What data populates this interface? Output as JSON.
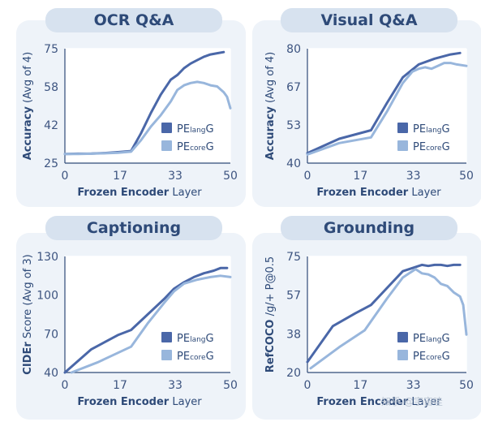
{
  "chart_data": [
    {
      "type": "line",
      "title": "OCR Q&A",
      "ylabel_bold": "Accuracy",
      "ylabel_rest": " (Avg of 4)",
      "xlabel_bold": "Frozen Encoder",
      "xlabel_rest": " Layer",
      "xlim": [
        0,
        50
      ],
      "ylim": [
        25,
        75
      ],
      "xticks": [
        "0",
        "17",
        "33",
        "50"
      ],
      "yticks": [
        "25",
        "42",
        "58",
        "75"
      ],
      "grid": true,
      "legend": "bottom-right",
      "series": [
        {
          "name_main": "PE",
          "name_sub": "lang",
          "name_end": "G",
          "color": "#4a67a8",
          "x": [
            0,
            4,
            8,
            12,
            16,
            20,
            23,
            26,
            29,
            32,
            34,
            36,
            38,
            40,
            42,
            44,
            46,
            48
          ],
          "y": [
            29.0,
            29.1,
            29.2,
            29.4,
            29.8,
            30.3,
            38,
            47,
            55,
            61.5,
            63.5,
            66.5,
            68.5,
            70,
            71.5,
            72.5,
            73,
            73.5
          ]
        },
        {
          "name_main": "PE",
          "name_sub": "core",
          "name_end": "G",
          "color": "#98b6dc",
          "x": [
            0,
            4,
            8,
            12,
            16,
            20,
            23,
            26,
            29,
            32,
            34,
            36,
            38,
            40,
            42,
            44,
            46,
            48,
            49,
            50
          ],
          "y": [
            29.0,
            29.0,
            29.1,
            29.3,
            29.5,
            30.0,
            35,
            41,
            46,
            52,
            57,
            59,
            60,
            60.5,
            60,
            59,
            58.5,
            56,
            54,
            49
          ]
        }
      ]
    },
    {
      "type": "line",
      "title": "Visual Q&A",
      "ylabel_bold": "Accuracy",
      "ylabel_rest": " (Avg of 4)",
      "xlabel_bold": "Frozen Encoder",
      "xlabel_rest": " Layer",
      "xlim": [
        0,
        50
      ],
      "ylim": [
        40,
        80
      ],
      "xticks": [
        "0",
        "17",
        "33",
        "50"
      ],
      "yticks": [
        "40",
        "53",
        "67",
        "80"
      ],
      "grid": true,
      "legend": "bottom-right",
      "series": [
        {
          "name_main": "PE",
          "name_sub": "lang",
          "name_end": "G",
          "color": "#4a67a8",
          "x": [
            0,
            10,
            20,
            25,
            30,
            35,
            40,
            45,
            48
          ],
          "y": [
            43.5,
            48.5,
            51.5,
            61,
            70,
            74.5,
            76.5,
            78,
            78.5
          ]
        },
        {
          "name_main": "PE",
          "name_sub": "core",
          "name_end": "G",
          "color": "#98b6dc",
          "x": [
            0,
            10,
            20,
            25,
            30,
            33,
            35,
            37,
            39,
            41,
            43,
            45,
            47,
            50
          ],
          "y": [
            43,
            47,
            49,
            58,
            68,
            72,
            73,
            73.5,
            73,
            74,
            75,
            75,
            74.5,
            74
          ]
        }
      ]
    },
    {
      "type": "line",
      "title": "Captioning",
      "ylabel_bold": "CIDEr",
      "ylabel_rest": " Score (Avg of 3)",
      "xlabel_bold": "Frozen Encoder",
      "xlabel_rest": " Layer",
      "xlim": [
        0,
        50
      ],
      "ylim": [
        40,
        130
      ],
      "xticks": [
        "0",
        "17",
        "33",
        "50"
      ],
      "yticks": [
        "40",
        "70",
        "100",
        "130"
      ],
      "grid": true,
      "legend": "bottom-right",
      "series": [
        {
          "name_main": "PE",
          "name_sub": "lang",
          "name_end": "G",
          "color": "#4a67a8",
          "x": [
            0,
            8,
            16,
            20,
            25,
            30,
            33,
            36,
            39,
            42,
            45,
            47,
            49
          ],
          "y": [
            40,
            58,
            69,
            73,
            85,
            97,
            105,
            110,
            114,
            117,
            119,
            121,
            121
          ]
        },
        {
          "name_main": "PE",
          "name_sub": "core",
          "name_end": "G",
          "color": "#98b6dc",
          "x": [
            2,
            10,
            20,
            25,
            30,
            33,
            36,
            40,
            44,
            47,
            50
          ],
          "y": [
            40,
            48,
            60,
            78,
            94,
            103,
            109,
            112,
            114,
            115,
            114
          ]
        }
      ]
    },
    {
      "type": "line",
      "title": "Grounding",
      "ylabel_bold": "RefCOCO",
      "ylabel_rest": " /g/+ P@0.5",
      "xlabel_bold": "Frozen Encoder",
      "xlabel_rest": " Layer",
      "xlim": [
        0,
        50
      ],
      "ylim": [
        20,
        75
      ],
      "xticks": [
        "0",
        "17",
        "33",
        "50"
      ],
      "yticks": [
        "20",
        "38",
        "57",
        "75"
      ],
      "grid": true,
      "legend": "bottom-right",
      "series": [
        {
          "name_main": "PE",
          "name_sub": "lang",
          "name_end": "G",
          "color": "#4a67a8",
          "x": [
            0,
            8,
            15,
            20,
            25,
            30,
            33,
            36,
            38,
            40,
            42,
            44,
            46,
            48
          ],
          "y": [
            25,
            42,
            48,
            52,
            60,
            68,
            69.5,
            71,
            70.5,
            71,
            71,
            70.5,
            71,
            71
          ]
        },
        {
          "name_main": "PE",
          "name_sub": "core",
          "name_end": "G",
          "color": "#98b6dc",
          "x": [
            1,
            10,
            18,
            25,
            30,
            32,
            34,
            36,
            38,
            40,
            42,
            44,
            46,
            48,
            49,
            50
          ],
          "y": [
            22,
            32,
            40,
            55,
            65,
            67,
            69,
            67,
            66.5,
            65,
            62,
            61,
            58,
            56,
            52,
            38
          ]
        }
      ]
    }
  ],
  "watermark": "知乎 @宇宙哇"
}
